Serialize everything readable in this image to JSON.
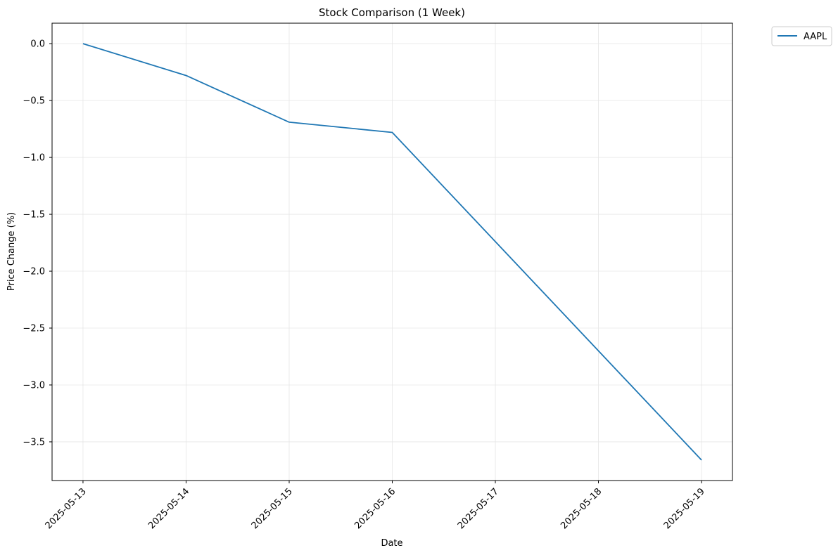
{
  "chart_data": {
    "type": "line",
    "title": "Stock Comparison (1 Week)",
    "xlabel": "Date",
    "ylabel": "Price Change (%)",
    "x": [
      "2025-05-13",
      "2025-05-14",
      "2025-05-15",
      "2025-05-16",
      "2025-05-17",
      "2025-05-18",
      "2025-05-19"
    ],
    "series": [
      {
        "name": "AAPL",
        "color": "#1f77b4",
        "points": [
          {
            "x": "2025-05-13",
            "y": 0.0
          },
          {
            "x": "2025-05-14",
            "y": -0.28
          },
          {
            "x": "2025-05-15",
            "y": -0.69
          },
          {
            "x": "2025-05-16",
            "y": -0.78
          },
          {
            "x": "2025-05-19",
            "y": -3.66
          }
        ]
      }
    ],
    "xticks": [
      "2025-05-13",
      "2025-05-14",
      "2025-05-15",
      "2025-05-16",
      "2025-05-17",
      "2025-05-18",
      "2025-05-19"
    ],
    "yticks": [
      0.0,
      -0.5,
      -1.0,
      -1.5,
      -2.0,
      -2.5,
      -3.0,
      -3.5
    ],
    "ytick_labels": [
      "0.0",
      "−0.5",
      "−1.0",
      "−1.5",
      "−2.0",
      "−2.5",
      "−3.0",
      "−3.5"
    ],
    "ylim": [
      -3.84,
      0.18
    ],
    "xlim": [
      "2025-05-12T16:48",
      "2025-05-19T07:12"
    ],
    "grid": true,
    "legend": "outside-top-right"
  }
}
